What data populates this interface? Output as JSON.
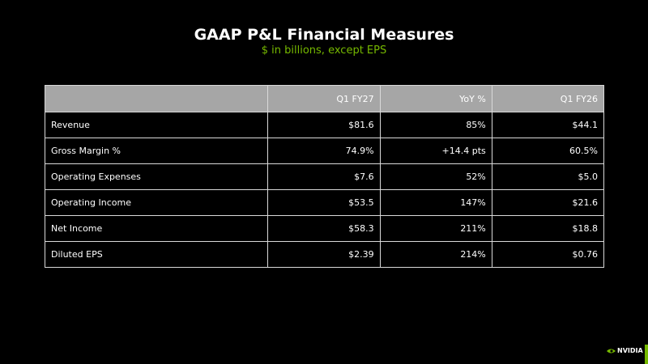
{
  "header": {
    "title": "GAAP P&L Financial Measures",
    "subtitle": "$ in billions, except EPS"
  },
  "table": {
    "columns": [
      "Q1 FY27",
      "YoY %",
      "Q1 FY26"
    ],
    "rows": [
      [
        "Revenue",
        "$81.6",
        "85%",
        "$44.1"
      ],
      [
        "Gross Margin %",
        "74.9%",
        "+14.4 pts",
        "60.5%"
      ],
      [
        "Operating Expenses",
        "$7.6",
        "52%",
        "$5.0"
      ],
      [
        "Operating Income",
        "$53.5",
        "147%",
        "$21.6"
      ],
      [
        "Net Income",
        "$58.3",
        "211%",
        "$18.8"
      ],
      [
        "Diluted EPS",
        "$2.39",
        "214%",
        "$0.76"
      ]
    ]
  },
  "footer": {
    "logo": "NVIDIA"
  }
}
